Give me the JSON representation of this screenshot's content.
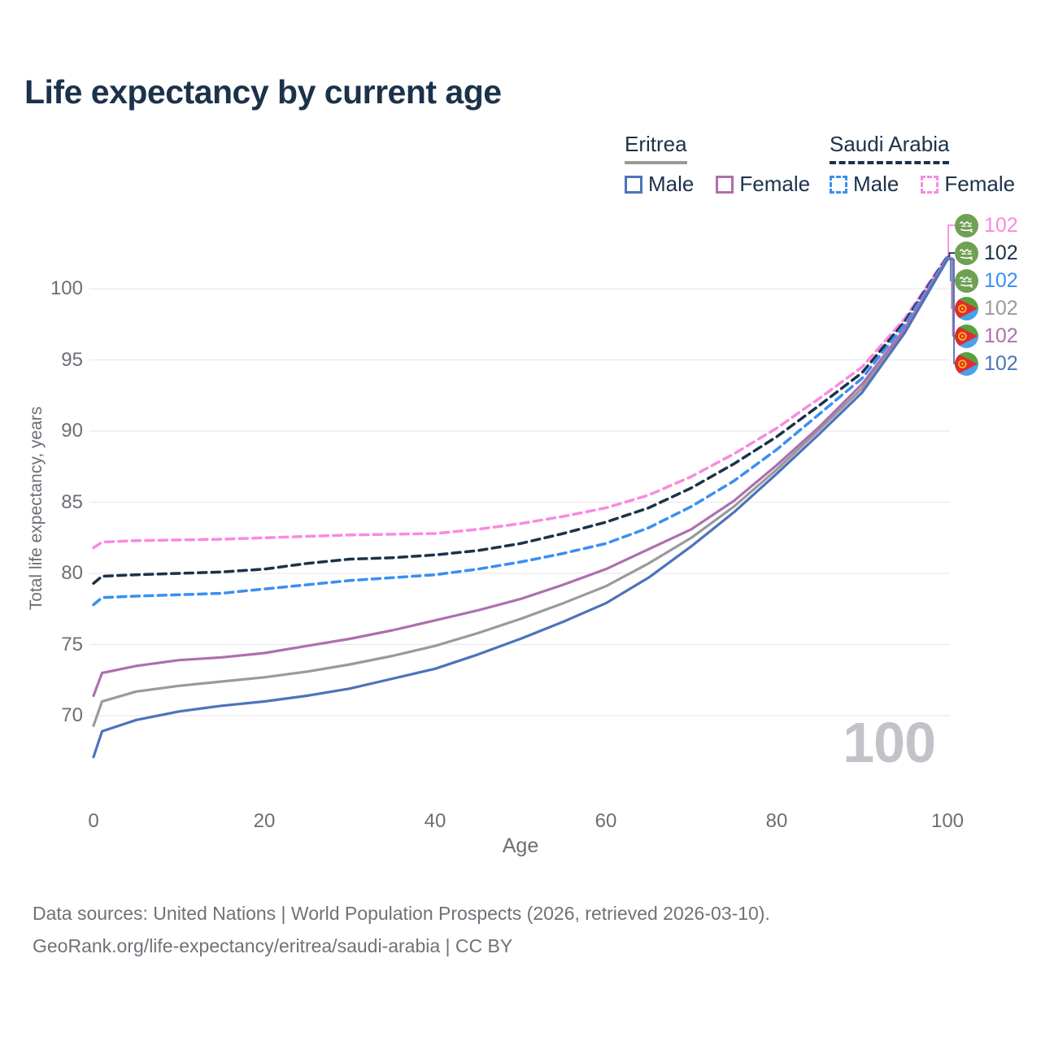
{
  "header": {
    "title": "Life expectancy by current age"
  },
  "legend": {
    "groups": [
      {
        "country": "Eritrea",
        "line_style": "solid",
        "line_color": "#9a9a9a",
        "items": [
          {
            "label": "Male",
            "color": "#4d73ba",
            "dashed": false
          },
          {
            "label": "Female",
            "color": "#ae6fae",
            "dashed": false
          }
        ]
      },
      {
        "country": "Saudi Arabia",
        "line_style": "dashed",
        "line_color": "#1c324a",
        "items": [
          {
            "label": "Male",
            "color": "#3a8ff0",
            "dashed": true
          },
          {
            "label": "Female",
            "color": "#f98ae0",
            "dashed": true
          }
        ]
      }
    ]
  },
  "chart_data": {
    "type": "line",
    "title": "Life expectancy by current age",
    "xlabel": "Age",
    "ylabel": "Total life expectancy, years",
    "xlim": [
      0,
      100
    ],
    "ylim": [
      67,
      103
    ],
    "xticks": [
      0,
      20,
      40,
      60,
      80,
      100
    ],
    "yticks": [
      70,
      75,
      80,
      85,
      90,
      95,
      100
    ],
    "grid": true,
    "legend_position": "top-right",
    "watermark": "100",
    "x_ages": [
      0,
      1,
      5,
      10,
      15,
      20,
      25,
      30,
      35,
      40,
      45,
      50,
      55,
      60,
      65,
      70,
      75,
      80,
      85,
      90,
      95,
      100
    ],
    "series": [
      {
        "name": "Saudi Arabia Female",
        "country": "Saudi Arabia",
        "sex": "Female",
        "color": "#f98ae0",
        "dashed": true,
        "flag": "saudi-arabia",
        "end_label": "102",
        "values": [
          81.8,
          82.2,
          82.3,
          82.35,
          82.4,
          82.5,
          82.6,
          82.7,
          82.75,
          82.8,
          83.1,
          83.5,
          84.0,
          84.6,
          85.5,
          86.8,
          88.4,
          90.2,
          92.3,
          94.5,
          97.9,
          102.3
        ]
      },
      {
        "name": "Saudi Arabia Total",
        "country": "Saudi Arabia",
        "sex": "All",
        "color": "#1c324a",
        "dashed": true,
        "flag": "saudi-arabia",
        "end_label": "102",
        "values": [
          79.3,
          79.8,
          79.9,
          80.0,
          80.1,
          80.3,
          80.7,
          81.0,
          81.1,
          81.3,
          81.6,
          82.1,
          82.8,
          83.6,
          84.6,
          86.0,
          87.7,
          89.6,
          91.8,
          94.1,
          97.7,
          102.25
        ]
      },
      {
        "name": "Saudi Arabia Male",
        "country": "Saudi Arabia",
        "sex": "Male",
        "color": "#3a8ff0",
        "dashed": true,
        "flag": "saudi-arabia",
        "end_label": "102",
        "values": [
          77.8,
          78.3,
          78.4,
          78.5,
          78.6,
          78.9,
          79.2,
          79.5,
          79.7,
          79.9,
          80.3,
          80.8,
          81.4,
          82.1,
          83.2,
          84.7,
          86.5,
          88.7,
          91.2,
          93.7,
          97.5,
          102.2
        ]
      },
      {
        "name": "Eritrea Total",
        "country": "Eritrea",
        "sex": "All",
        "color": "#9a9a9a",
        "dashed": false,
        "flag": "eritrea",
        "end_label": "102",
        "values": [
          69.3,
          71.0,
          71.7,
          72.1,
          72.4,
          72.7,
          73.1,
          73.6,
          74.2,
          74.9,
          75.8,
          76.8,
          77.9,
          79.1,
          80.7,
          82.5,
          84.7,
          87.3,
          90.1,
          93.0,
          97.1,
          102.1
        ]
      },
      {
        "name": "Eritrea Female",
        "country": "Eritrea",
        "sex": "Female",
        "color": "#ae6fae",
        "dashed": false,
        "flag": "eritrea",
        "end_label": "102",
        "values": [
          71.4,
          73.0,
          73.5,
          73.9,
          74.1,
          74.4,
          74.9,
          75.4,
          76.0,
          76.7,
          77.4,
          78.2,
          79.2,
          80.3,
          81.7,
          83.1,
          85.1,
          87.6,
          90.3,
          93.3,
          97.2,
          102.15
        ]
      },
      {
        "name": "Eritrea Male",
        "country": "Eritrea",
        "sex": "Male",
        "color": "#4d73ba",
        "dashed": false,
        "flag": "eritrea",
        "end_label": "102",
        "values": [
          67.1,
          68.9,
          69.7,
          70.3,
          70.7,
          71.0,
          71.4,
          71.9,
          72.6,
          73.3,
          74.3,
          75.4,
          76.6,
          77.9,
          79.7,
          81.9,
          84.3,
          87.0,
          89.8,
          92.7,
          96.9,
          102.05
        ]
      }
    ]
  },
  "footer": {
    "line1": "Data sources: United Nations | World Population Prospects (2026, retrieved 2026-03-10).",
    "line2": "GeoRank.org/life-expectancy/eritrea/saudi-arabia | CC BY"
  }
}
